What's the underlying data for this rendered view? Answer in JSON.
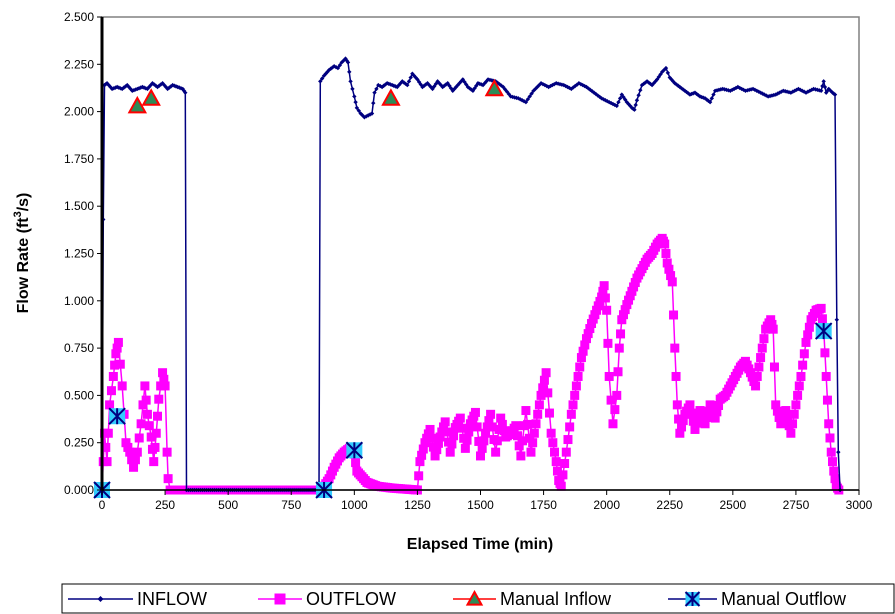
{
  "chart_data": {
    "type": "line",
    "xlabel": "Elapsed Time (min)",
    "ylabel_main": "Flow Rate (ft",
    "ylabel_sup": "3",
    "ylabel_tail": "/s)",
    "xlim": [
      0,
      3000
    ],
    "ylim": [
      0,
      2.5
    ],
    "x_ticks": [
      "0",
      "250",
      "500",
      "750",
      "1000",
      "1250",
      "1500",
      "1750",
      "2000",
      "2250",
      "2500",
      "2750",
      "3000"
    ],
    "y_ticks": [
      "0.000",
      "0.250",
      "0.500",
      "0.750",
      "1.000",
      "1.250",
      "1.500",
      "1.750",
      "2.000",
      "2.250",
      "2.500"
    ],
    "grid": false,
    "legend_position": "bottom",
    "colors": {
      "inflow": "#000080",
      "outflow": "#ff00ff",
      "manual_inflow_fill": "#2e8b57",
      "manual_inflow_edge": "#ff0000",
      "manual_outflow_fill": "#33ccff",
      "manual_outflow_edge": "#000080"
    },
    "series": [
      {
        "name": "INFLOW",
        "points": [
          [
            0,
            0
          ],
          [
            5,
            1.43
          ],
          [
            10,
            2.14
          ],
          [
            20,
            2.15
          ],
          [
            40,
            2.12
          ],
          [
            60,
            2.13
          ],
          [
            80,
            2.12
          ],
          [
            100,
            2.14
          ],
          [
            120,
            2.11
          ],
          [
            140,
            2.12
          ],
          [
            160,
            2.13
          ],
          [
            180,
            2.12
          ],
          [
            200,
            2.15
          ],
          [
            220,
            2.13
          ],
          [
            240,
            2.15
          ],
          [
            260,
            2.12
          ],
          [
            280,
            2.14
          ],
          [
            300,
            2.13
          ],
          [
            320,
            2.12
          ],
          [
            330,
            2.1
          ],
          [
            335,
            0
          ],
          [
            860,
            0
          ],
          [
            865,
            2.16
          ],
          [
            880,
            2.19
          ],
          [
            900,
            2.22
          ],
          [
            920,
            2.24
          ],
          [
            935,
            2.23
          ],
          [
            950,
            2.26
          ],
          [
            965,
            2.28
          ],
          [
            975,
            2.26
          ],
          [
            985,
            2.16
          ],
          [
            1000,
            2.08
          ],
          [
            1010,
            2.02
          ],
          [
            1025,
            1.99
          ],
          [
            1040,
            1.97
          ],
          [
            1055,
            1.98
          ],
          [
            1070,
            1.99
          ],
          [
            1080,
            2.1
          ],
          [
            1095,
            2.14
          ],
          [
            1110,
            2.13
          ],
          [
            1130,
            2.15
          ],
          [
            1150,
            2.14
          ],
          [
            1170,
            2.13
          ],
          [
            1190,
            2.16
          ],
          [
            1210,
            2.14
          ],
          [
            1230,
            2.2
          ],
          [
            1250,
            2.17
          ],
          [
            1270,
            2.13
          ],
          [
            1290,
            2.15
          ],
          [
            1310,
            2.12
          ],
          [
            1330,
            2.16
          ],
          [
            1350,
            2.13
          ],
          [
            1370,
            2.15
          ],
          [
            1390,
            2.11
          ],
          [
            1410,
            2.14
          ],
          [
            1430,
            2.17
          ],
          [
            1450,
            2.13
          ],
          [
            1470,
            2.11
          ],
          [
            1490,
            2.15
          ],
          [
            1510,
            2.14
          ],
          [
            1530,
            2.17
          ],
          [
            1560,
            2.16
          ],
          [
            1590,
            2.13
          ],
          [
            1620,
            2.08
          ],
          [
            1650,
            2.07
          ],
          [
            1680,
            2.05
          ],
          [
            1710,
            2.11
          ],
          [
            1740,
            2.15
          ],
          [
            1770,
            2.13
          ],
          [
            1800,
            2.15
          ],
          [
            1830,
            2.14
          ],
          [
            1860,
            2.12
          ],
          [
            1890,
            2.15
          ],
          [
            1920,
            2.13
          ],
          [
            1950,
            2.1
          ],
          [
            1980,
            2.07
          ],
          [
            2010,
            2.05
          ],
          [
            2040,
            2.03
          ],
          [
            2060,
            2.09
          ],
          [
            2080,
            2.05
          ],
          [
            2100,
            2.02
          ],
          [
            2110,
            2.01
          ],
          [
            2120,
            2.06
          ],
          [
            2140,
            2.14
          ],
          [
            2160,
            2.16
          ],
          [
            2180,
            2.14
          ],
          [
            2200,
            2.17
          ],
          [
            2220,
            2.21
          ],
          [
            2235,
            2.23
          ],
          [
            2250,
            2.18
          ],
          [
            2270,
            2.15
          ],
          [
            2290,
            2.13
          ],
          [
            2310,
            2.11
          ],
          [
            2330,
            2.09
          ],
          [
            2350,
            2.1
          ],
          [
            2370,
            2.08
          ],
          [
            2390,
            2.07
          ],
          [
            2410,
            2.05
          ],
          [
            2430,
            2.11
          ],
          [
            2460,
            2.12
          ],
          [
            2490,
            2.11
          ],
          [
            2520,
            2.13
          ],
          [
            2550,
            2.11
          ],
          [
            2580,
            2.12
          ],
          [
            2610,
            2.1
          ],
          [
            2640,
            2.08
          ],
          [
            2670,
            2.09
          ],
          [
            2700,
            2.11
          ],
          [
            2730,
            2.1
          ],
          [
            2760,
            2.12
          ],
          [
            2790,
            2.1
          ],
          [
            2820,
            2.12
          ],
          [
            2850,
            2.11
          ],
          [
            2860,
            2.16
          ],
          [
            2870,
            2.1
          ],
          [
            2880,
            2.12
          ],
          [
            2895,
            2.1
          ],
          [
            2905,
            2.09
          ],
          [
            2912,
            0.9
          ],
          [
            2918,
            0.2
          ],
          [
            2925,
            0
          ]
        ]
      },
      {
        "name": "OUTFLOW",
        "points": [
          [
            0,
            0
          ],
          [
            10,
            0.3
          ],
          [
            20,
            0.15
          ],
          [
            30,
            0.45
          ],
          [
            45,
            0.6
          ],
          [
            55,
            0.72
          ],
          [
            65,
            0.78
          ],
          [
            80,
            0.55
          ],
          [
            95,
            0.25
          ],
          [
            110,
            0.2
          ],
          [
            125,
            0.12
          ],
          [
            140,
            0.2
          ],
          [
            155,
            0.35
          ],
          [
            170,
            0.55
          ],
          [
            180,
            0.4
          ],
          [
            195,
            0.28
          ],
          [
            205,
            0.15
          ],
          [
            215,
            0.3
          ],
          [
            225,
            0.48
          ],
          [
            240,
            0.62
          ],
          [
            250,
            0.55
          ],
          [
            258,
            0.2
          ],
          [
            262,
            0.06
          ],
          [
            270,
            0
          ],
          [
            330,
            0
          ],
          [
            500,
            0
          ],
          [
            700,
            0
          ],
          [
            860,
            0
          ],
          [
            880,
            0.02
          ],
          [
            900,
            0.06
          ],
          [
            920,
            0.12
          ],
          [
            940,
            0.17
          ],
          [
            960,
            0.2
          ],
          [
            980,
            0.22
          ],
          [
            1000,
            0.19
          ],
          [
            1010,
            0.1
          ],
          [
            1030,
            0.07
          ],
          [
            1050,
            0.04
          ],
          [
            1070,
            0.03
          ],
          [
            1090,
            0.02
          ],
          [
            1150,
            0.01
          ],
          [
            1250,
            0
          ],
          [
            1260,
            0.15
          ],
          [
            1280,
            0.25
          ],
          [
            1300,
            0.32
          ],
          [
            1320,
            0.18
          ],
          [
            1340,
            0.28
          ],
          [
            1360,
            0.36
          ],
          [
            1380,
            0.2
          ],
          [
            1400,
            0.33
          ],
          [
            1420,
            0.38
          ],
          [
            1440,
            0.22
          ],
          [
            1460,
            0.35
          ],
          [
            1480,
            0.41
          ],
          [
            1500,
            0.18
          ],
          [
            1520,
            0.3
          ],
          [
            1540,
            0.4
          ],
          [
            1560,
            0.2
          ],
          [
            1580,
            0.38
          ],
          [
            1600,
            0.28
          ],
          [
            1620,
            0.3
          ],
          [
            1640,
            0.34
          ],
          [
            1660,
            0.18
          ],
          [
            1680,
            0.42
          ],
          [
            1700,
            0.2
          ],
          [
            1720,
            0.35
          ],
          [
            1740,
            0.5
          ],
          [
            1760,
            0.62
          ],
          [
            1780,
            0.3
          ],
          [
            1800,
            0.15
          ],
          [
            1810,
            0.05
          ],
          [
            1820,
            0.02
          ],
          [
            1840,
            0.2
          ],
          [
            1860,
            0.4
          ],
          [
            1880,
            0.55
          ],
          [
            1900,
            0.7
          ],
          [
            1920,
            0.8
          ],
          [
            1940,
            0.88
          ],
          [
            1960,
            0.95
          ],
          [
            1980,
            1.02
          ],
          [
            1990,
            1.08
          ],
          [
            2000,
            0.95
          ],
          [
            2010,
            0.6
          ],
          [
            2025,
            0.35
          ],
          [
            2040,
            0.5
          ],
          [
            2050,
            0.75
          ],
          [
            2060,
            0.9
          ],
          [
            2080,
            0.98
          ],
          [
            2100,
            1.05
          ],
          [
            2120,
            1.12
          ],
          [
            2140,
            1.17
          ],
          [
            2160,
            1.22
          ],
          [
            2180,
            1.25
          ],
          [
            2200,
            1.3
          ],
          [
            2220,
            1.33
          ],
          [
            2230,
            1.3
          ],
          [
            2240,
            1.2
          ],
          [
            2260,
            1.1
          ],
          [
            2270,
            0.75
          ],
          [
            2280,
            0.45
          ],
          [
            2290,
            0.3
          ],
          [
            2310,
            0.4
          ],
          [
            2330,
            0.45
          ],
          [
            2350,
            0.32
          ],
          [
            2370,
            0.42
          ],
          [
            2390,
            0.35
          ],
          [
            2410,
            0.45
          ],
          [
            2430,
            0.38
          ],
          [
            2450,
            0.48
          ],
          [
            2470,
            0.5
          ],
          [
            2490,
            0.55
          ],
          [
            2510,
            0.6
          ],
          [
            2530,
            0.65
          ],
          [
            2550,
            0.68
          ],
          [
            2570,
            0.62
          ],
          [
            2590,
            0.55
          ],
          [
            2610,
            0.7
          ],
          [
            2630,
            0.85
          ],
          [
            2650,
            0.9
          ],
          [
            2660,
            0.85
          ],
          [
            2670,
            0.45
          ],
          [
            2690,
            0.35
          ],
          [
            2710,
            0.42
          ],
          [
            2730,
            0.3
          ],
          [
            2750,
            0.45
          ],
          [
            2770,
            0.6
          ],
          [
            2790,
            0.78
          ],
          [
            2810,
            0.9
          ],
          [
            2830,
            0.95
          ],
          [
            2850,
            0.96
          ],
          [
            2860,
            0.85
          ],
          [
            2870,
            0.6
          ],
          [
            2880,
            0.35
          ],
          [
            2890,
            0.2
          ],
          [
            2900,
            0.1
          ],
          [
            2910,
            0.02
          ],
          [
            2920,
            0
          ]
        ]
      },
      {
        "name": "Manual Inflow",
        "points": [
          [
            140,
            2.03
          ],
          [
            195,
            2.07
          ],
          [
            1145,
            2.07
          ],
          [
            1555,
            2.12
          ]
        ]
      },
      {
        "name": "Manual Outflow",
        "points": [
          [
            0,
            0
          ],
          [
            60,
            0.39
          ],
          [
            880,
            0
          ],
          [
            1000,
            0.21
          ],
          [
            2860,
            0.84
          ]
        ]
      }
    ]
  }
}
